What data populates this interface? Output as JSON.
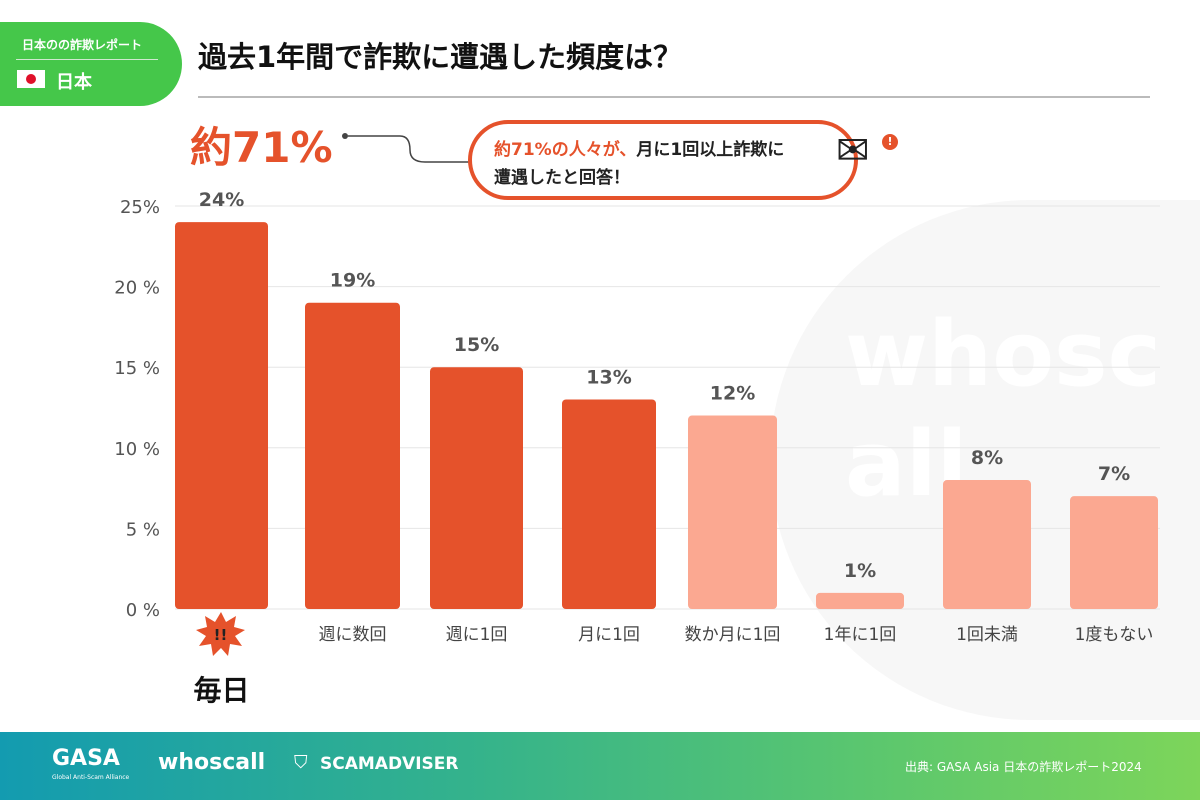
{
  "badge": {
    "report": "日本のの詐欺レポート",
    "country": "日本"
  },
  "title": "過去1年間で詐欺に遭遇した頻度は？",
  "headline": "約71%",
  "callout": {
    "highlight": "約71%の人々が、",
    "text1": "月に1回以上詐欺に",
    "text2": "遭遇したと回答！",
    "icon": "envelope-alert-icon"
  },
  "chart_data": {
    "type": "bar",
    "categories": [
      "毎日",
      "週に数回",
      "週に1回",
      "月に1回",
      "数か月に1回",
      "1年に1回",
      "1回未満",
      "1度もない"
    ],
    "values": [
      24,
      19,
      15,
      13,
      12,
      1,
      8,
      7
    ],
    "value_labels": [
      "24%",
      "19%",
      "15%",
      "13%",
      "12%",
      "1%",
      "8%",
      "7%"
    ],
    "yticks": [
      "0 %",
      "5 %",
      "10 %",
      "15 %",
      "20 %",
      "25%"
    ],
    "ylim": [
      0,
      25
    ],
    "grid": true,
    "colors": {
      "monthly_or_more": "#e5522b",
      "less_frequent": "#fba891"
    }
  },
  "daily_icon": "!!",
  "watermark": "whoscall",
  "footer": {
    "logos": [
      "GASA",
      "Global Anti-Scam Alliance",
      "whoscall",
      "SCAMADVISER"
    ],
    "source": "出典: GASA Asia 日本の詐欺レポート2024"
  }
}
